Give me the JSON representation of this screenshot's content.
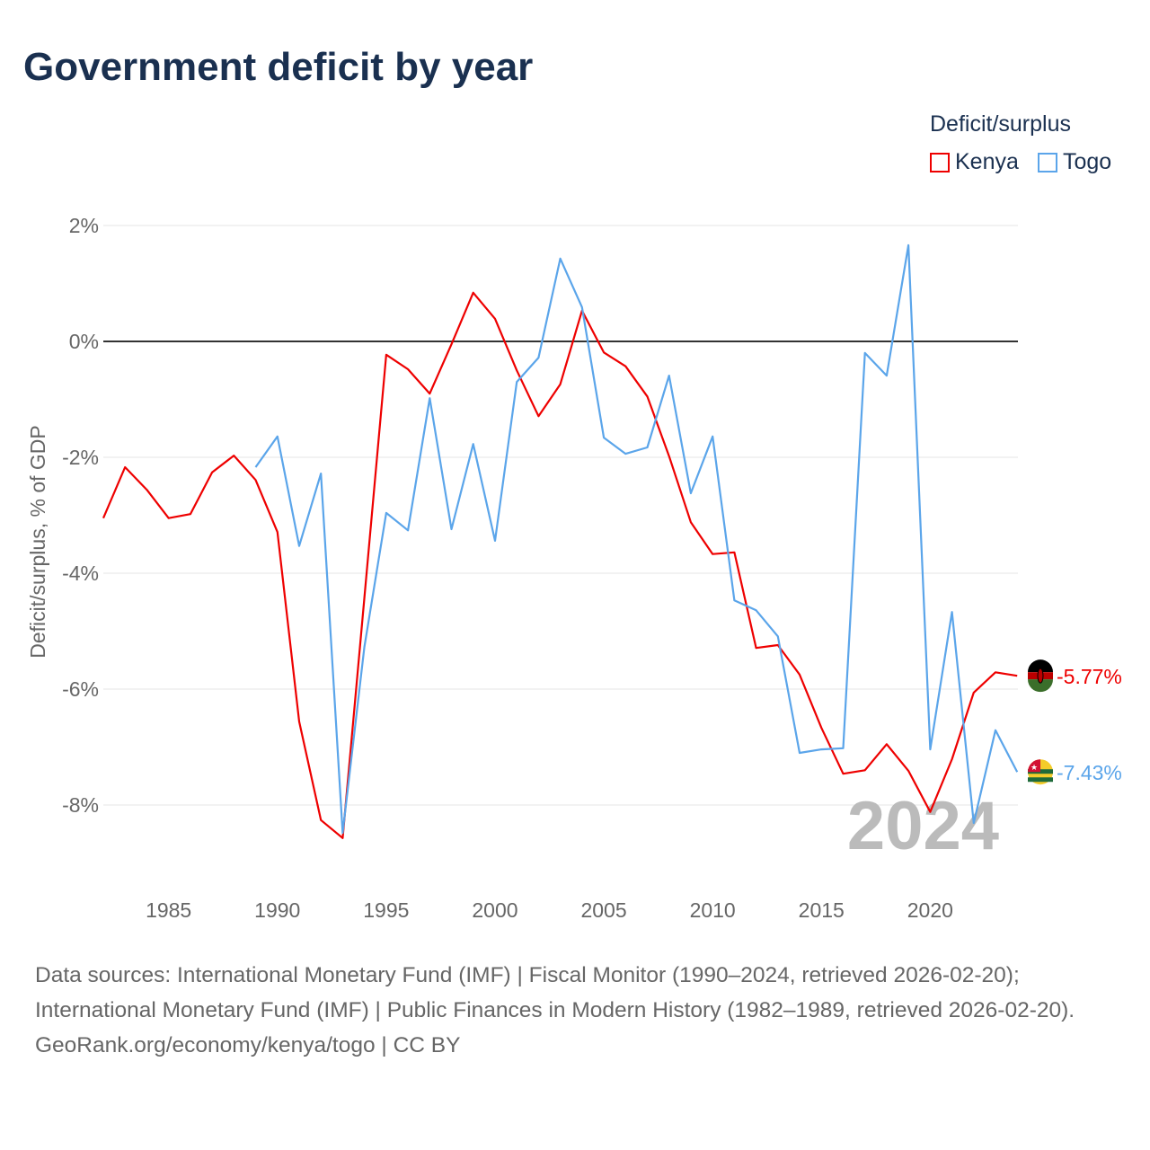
{
  "title": "Government deficit by year",
  "legend": {
    "title": "Deficit/surplus",
    "items": [
      {
        "label": "Kenya",
        "color": "#ee0000"
      },
      {
        "label": "Togo",
        "color": "#5ba5ea"
      }
    ]
  },
  "chart_data": {
    "type": "line",
    "title": "Government deficit by year",
    "ylabel": "Deficit/surplus, % of GDP",
    "xlabel": "",
    "ylim": [
      -9,
      2.3
    ],
    "xlim": [
      1982,
      2024
    ],
    "yticks": [
      2,
      0,
      -2,
      -4,
      -6,
      -8
    ],
    "ytick_labels": [
      "2%",
      "0%",
      "-2%",
      "-4%",
      "-6%",
      "-8%"
    ],
    "xticks": [
      1985,
      1990,
      1995,
      2000,
      2005,
      2010,
      2015,
      2020
    ],
    "xtick_labels": [
      "1985",
      "1990",
      "1995",
      "2000",
      "2005",
      "2010",
      "2015",
      "2020"
    ],
    "grid": true,
    "year_watermark": "2024",
    "series": [
      {
        "name": "Kenya",
        "color": "#ee0000",
        "start_year": 1982,
        "end_label": "-5.77%",
        "values": [
          -3.05,
          -2.17,
          -2.56,
          -3.05,
          -2.98,
          -2.26,
          -1.97,
          -2.39,
          -3.29,
          -6.56,
          -8.26,
          -8.57,
          -4.42,
          -0.23,
          -0.48,
          -0.9,
          -0.05,
          0.84,
          0.39,
          -0.5,
          -1.29,
          -0.74,
          0.53,
          -0.19,
          -0.43,
          -0.95,
          -1.98,
          -3.12,
          -3.67,
          -3.64,
          -5.29,
          -5.24,
          -5.75,
          -6.67,
          -7.46,
          -7.4,
          -6.95,
          -7.41,
          -8.12,
          -7.21,
          -6.06,
          -5.71,
          -5.77
        ]
      },
      {
        "name": "Togo",
        "color": "#5ba5ea",
        "start_year": 1989,
        "end_label": "-7.43%",
        "values": [
          -2.17,
          -1.64,
          -3.53,
          -2.28,
          -8.48,
          -5.27,
          -2.96,
          -3.26,
          -0.98,
          -3.24,
          -1.77,
          -3.44,
          -0.7,
          -0.28,
          1.43,
          0.59,
          -1.66,
          -1.94,
          -1.83,
          -0.59,
          -2.62,
          -1.64,
          -4.47,
          -4.64,
          -5.09,
          -7.1,
          -7.04,
          -7.02,
          -0.2,
          -0.59,
          1.66,
          -7.04,
          -4.67,
          -8.31,
          -6.71,
          -7.43
        ]
      }
    ]
  },
  "sources": {
    "line1": "Data sources: International Monetary Fund (IMF) | Fiscal Monitor (1990–2024, retrieved 2026-02-20); International Monetary Fund (IMF) | Public Finances in Modern History (1982–1989, retrieved 2026-02-20).",
    "line2": "GeoRank.org/economy/kenya/togo | CC BY"
  }
}
